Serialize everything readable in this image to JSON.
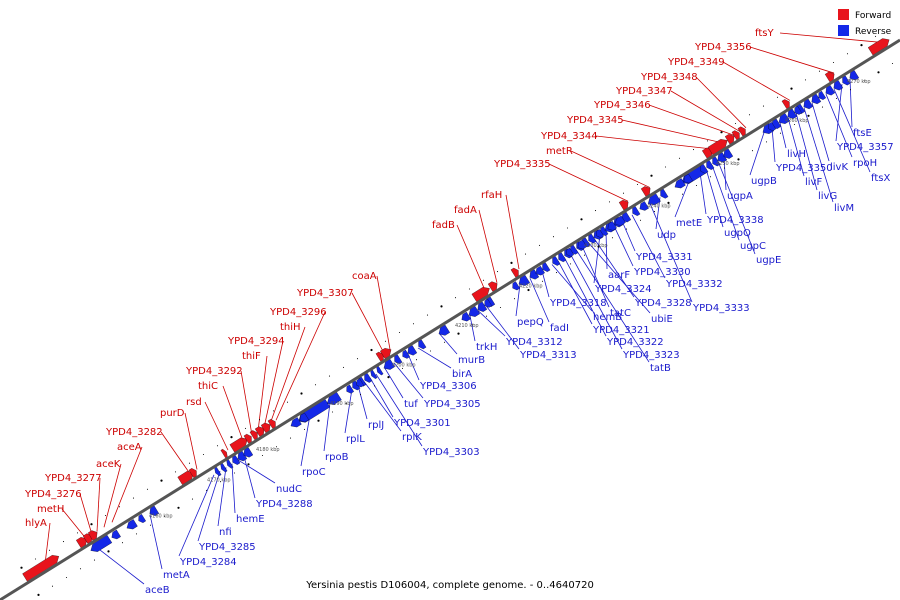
{
  "caption": "Yersinia pestis D106004, complete genome. - 0..4640720",
  "legend": {
    "forward_label": "Forward",
    "reverse_label": "Reverse",
    "forward_color": "#e8141c",
    "reverse_color": "#1428e8"
  },
  "colors": {
    "backbone": "#555555",
    "leader_forward": "#cc0000",
    "leader_reverse": "#1a1acc"
  },
  "kbp_ticks": [
    "4160 kbp",
    "4170 kbp",
    "4180 kbp",
    "4190 kbp",
    "4200 kbp",
    "4210 kbp",
    "4220 kbp",
    "4230 kbp",
    "4240 kbp",
    "4250 kbp",
    "4260 kbp",
    "4270 kbp"
  ],
  "forward_genes": [
    "hlyA",
    "metH",
    "YPD4_3276",
    "YPD4_3277",
    "aceK",
    "aceA",
    "YPD4_3282",
    "purD",
    "rsd",
    "thiC",
    "YPD4_3292",
    "thiF",
    "YPD4_3294",
    "thiH",
    "YPD4_3296",
    "YPD4_3307",
    "coaA",
    "fadB",
    "fadA",
    "rfaH",
    "YPD4_3335",
    "metR",
    "YPD4_3344",
    "YPD4_3345",
    "YPD4_3346",
    "YPD4_3347",
    "YPD4_3348",
    "YPD4_3349",
    "YPD4_3356",
    "ftsY"
  ],
  "reverse_genes": [
    "aceB",
    "metA",
    "YPD4_3284",
    "YPD4_3285",
    "nfi",
    "hemE",
    "nudC",
    "YPD4_3288",
    "rpoC",
    "rpoB",
    "rplL",
    "rplJ",
    "rplK",
    "YPD4_3301",
    "YPD4_3303",
    "tuf",
    "YPD4_3305",
    "YPD4_3306",
    "birA",
    "murB",
    "trkH",
    "YPD4_3312",
    "YPD4_3313",
    "pepQ",
    "fadI",
    "YPD4_3318",
    "hemB",
    "YPD4_3321",
    "YPD4_3322",
    "YPD4_3323",
    "tatB",
    "tatC",
    "ubiE",
    "YPD4_3328",
    "YPD4_3324",
    "aarF",
    "YPD4_3330",
    "YPD4_3331",
    "YPD4_3332",
    "YPD4_3333",
    "udp",
    "metE",
    "YPD4_3338",
    "ugpQ",
    "ugpC",
    "ugpE",
    "ugpA",
    "ugpB",
    "YPD4_3350",
    "livH",
    "livF",
    "livG",
    "livM",
    "livK",
    "rpoH",
    "ftsX",
    "YPD4_3357",
    "ftsE"
  ]
}
